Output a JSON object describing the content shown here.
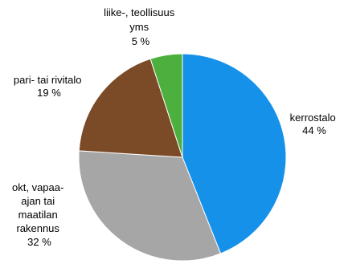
{
  "chart_data": {
    "type": "pie",
    "title": "",
    "legend": "none",
    "start_angle_deg": 0,
    "direction": "clockwise",
    "slices": [
      {
        "label_lines": [
          "kerrostalo"
        ],
        "value_text": "44 %",
        "value": 44,
        "color": "#1591ea"
      },
      {
        "label_lines": [
          "okt, vapaa-",
          "ajan tai",
          "maatilan",
          "rakennus"
        ],
        "value_text": "32 %",
        "value": 32,
        "color": "#a6a6a6"
      },
      {
        "label_lines": [
          "pari- tai rivitalo"
        ],
        "value_text": "19 %",
        "value": 19,
        "color": "#7b4a26"
      },
      {
        "label_lines": [
          "liike-, teollisuus",
          "yms"
        ],
        "value_text": "5 %",
        "value": 5,
        "color": "#4caf3e"
      }
    ]
  }
}
